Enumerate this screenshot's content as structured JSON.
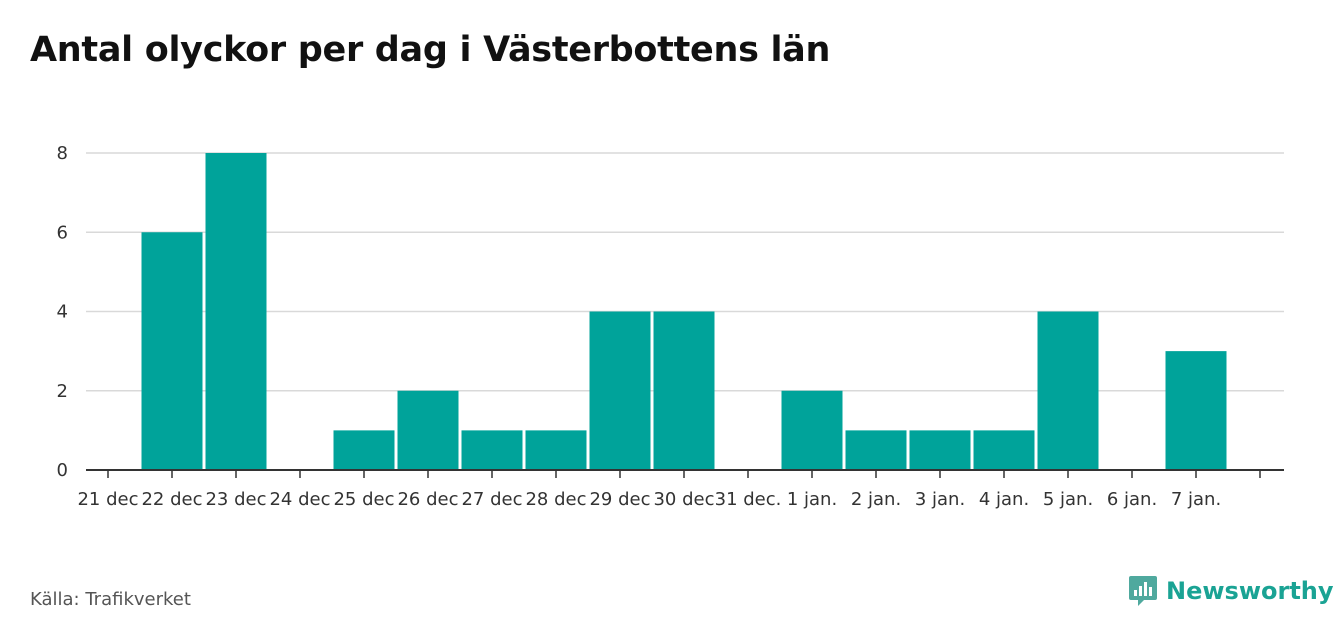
{
  "header": {
    "title": "Antal olyckor per dag i Västerbottens län"
  },
  "chart_data": {
    "type": "bar",
    "categories": [
      "21 dec",
      "22 dec",
      "23 dec",
      "24 dec",
      "25 dec",
      "26 dec",
      "27 dec",
      "28 dec",
      "29 dec",
      "30 dec",
      "31 dec.",
      "1 jan.",
      "2 jan.",
      "3 jan.",
      "4 jan.",
      "5 jan.",
      "6 jan.",
      "7 jan."
    ],
    "values": [
      0,
      6,
      8,
      0,
      1,
      2,
      1,
      1,
      4,
      4,
      0,
      2,
      1,
      1,
      1,
      4,
      0,
      3
    ],
    "ylim": [
      0,
      8
    ],
    "yticks": [
      0,
      2,
      4,
      6,
      8
    ],
    "title": "Antal olyckor per dag i Västerbottens län",
    "xlabel": "",
    "ylabel": "",
    "grid": true,
    "bar_color": "#00a39a"
  },
  "footer": {
    "source": "Källa: Trafikverket",
    "brand": "Newsworthy",
    "brand_color": "#1aa394",
    "brand_icon": "chart-bubble-icon"
  }
}
